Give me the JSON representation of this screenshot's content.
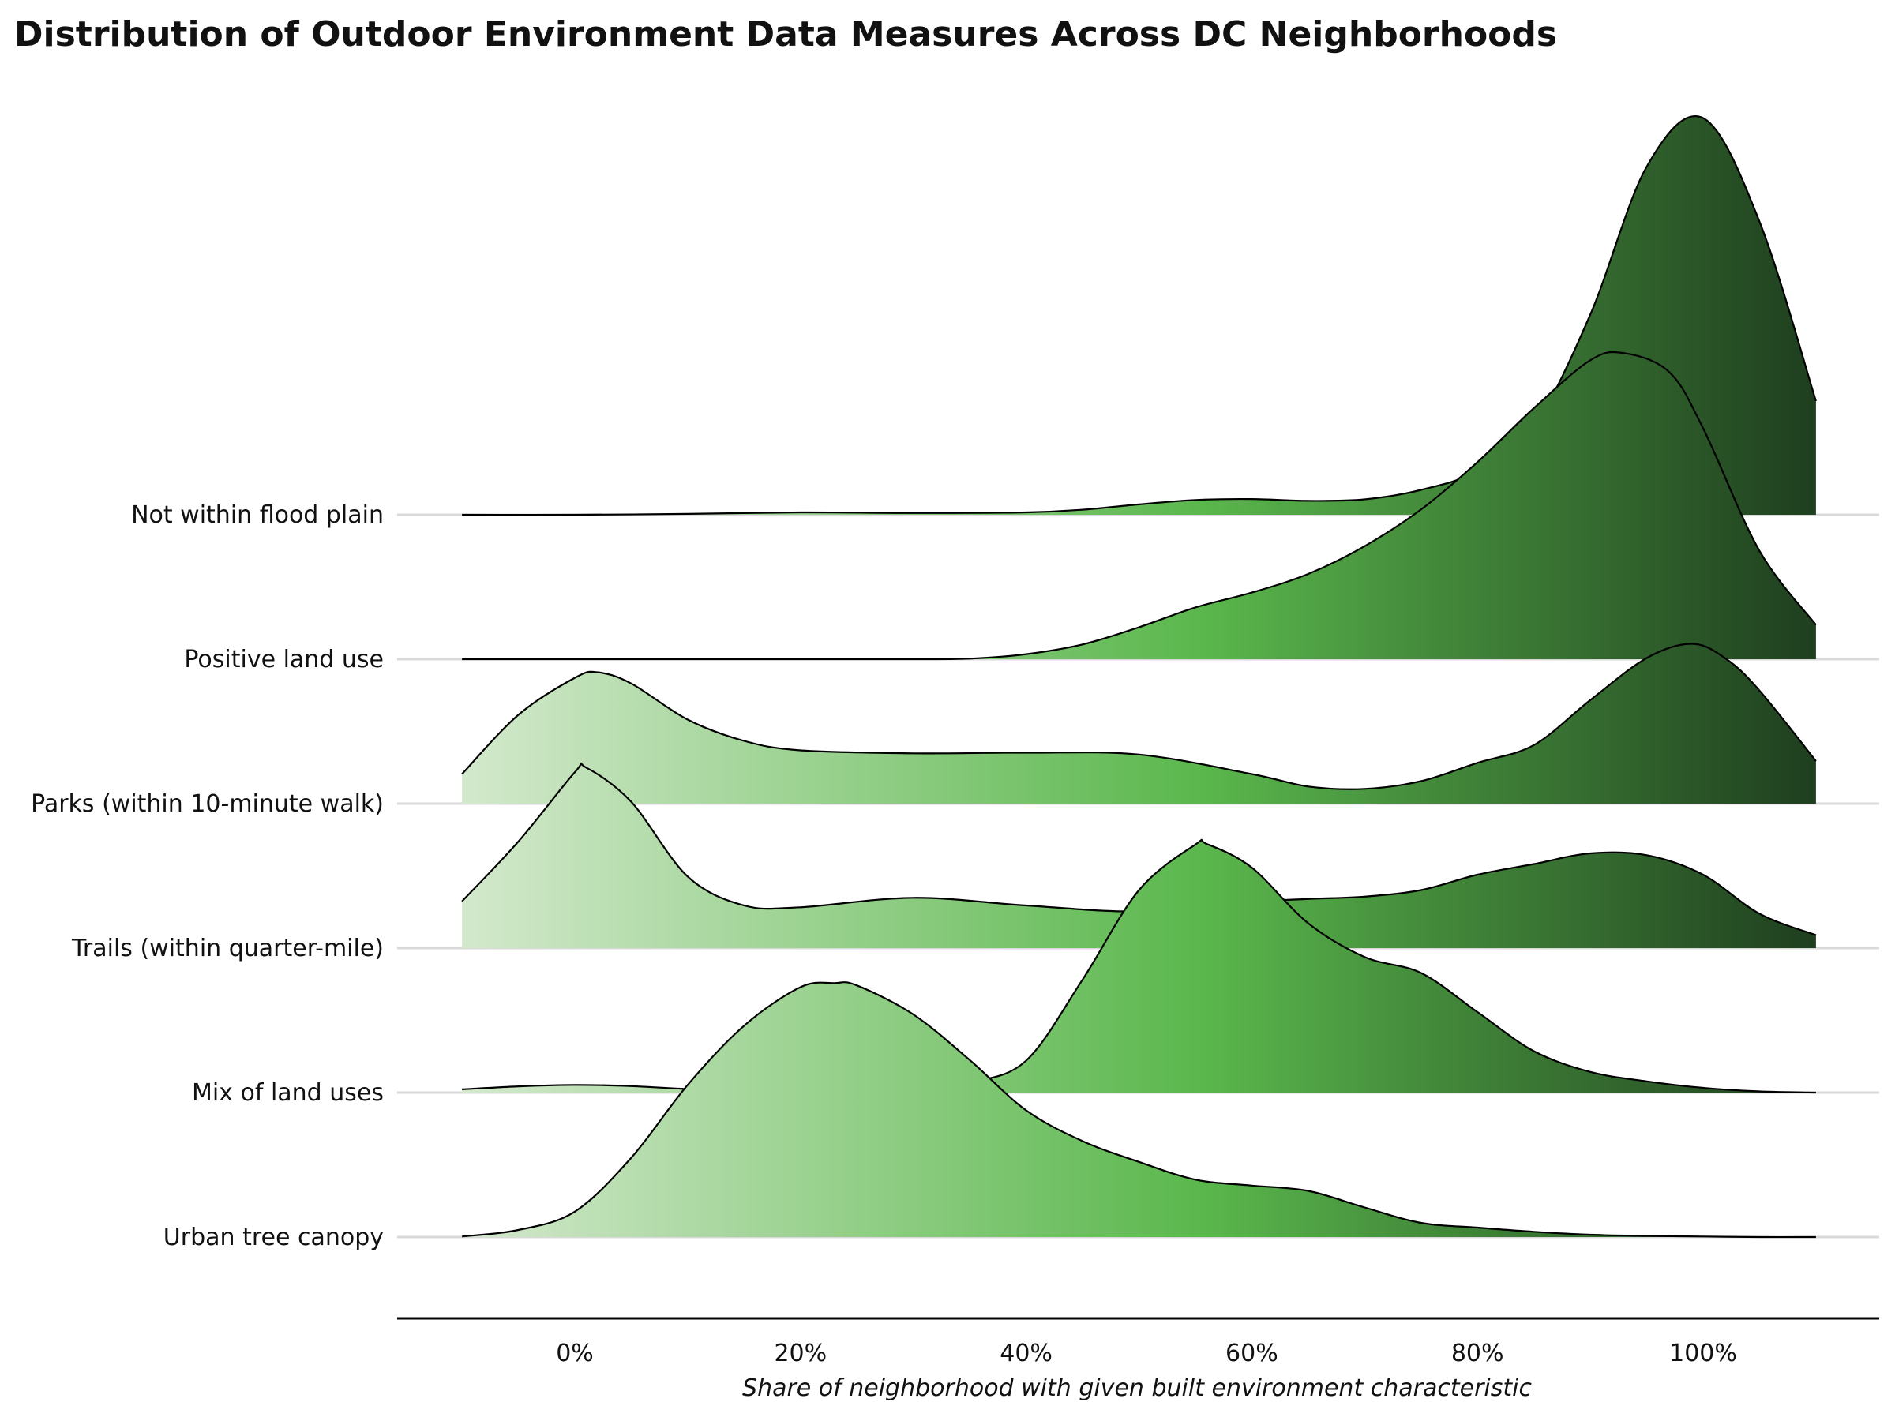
{
  "chart_data": {
    "type": "ridgeline",
    "title": "Distribution of Outdoor Environment Data Measures Across DC Neighborhoods",
    "xlabel": "Share of neighborhood with given built environment characteristic",
    "ylabel": "",
    "xlim": [
      -0.1,
      1.1
    ],
    "x_ticks": [
      0,
      0.2,
      0.4,
      0.6,
      0.8,
      1.0
    ],
    "x_tick_labels": [
      "0%",
      "20%",
      "40%",
      "60%",
      "80%",
      "100%"
    ],
    "grid": "horizontal baselines only",
    "legend": "none",
    "fill": "horizontal gradient by x value, light green to dark green",
    "colors": {
      "light": "#d3e9cc",
      "mid": "#5ab74c",
      "dark": "#1f3f1f",
      "outline": "#000000",
      "baseline": "#d9d9d9",
      "axis": "#000000"
    },
    "categories": [
      "Not within flood plain",
      "Positive land use",
      "Parks (within 10-minute walk)",
      "Trails (within quarter-mile)",
      "Mix of land uses",
      "Urban tree canopy"
    ],
    "series": [
      {
        "name": "Not within flood plain",
        "x": [
          -0.1,
          0.0,
          0.1,
          0.2,
          0.3,
          0.4,
          0.45,
          0.5,
          0.55,
          0.6,
          0.65,
          0.7,
          0.75,
          0.8,
          0.85,
          0.9,
          0.95,
          1.0,
          1.05,
          1.1
        ],
        "density": [
          0.0,
          0.0,
          0.03,
          0.08,
          0.06,
          0.08,
          0.17,
          0.35,
          0.5,
          0.53,
          0.47,
          0.52,
          0.84,
          1.48,
          3.0,
          6.76,
          11.76,
          13.4,
          9.9,
          3.84
        ]
      },
      {
        "name": "Positive land use",
        "x": [
          -0.1,
          0.0,
          0.1,
          0.2,
          0.3,
          0.35,
          0.4,
          0.45,
          0.5,
          0.55,
          0.6,
          0.65,
          0.7,
          0.75,
          0.8,
          0.85,
          0.9,
          0.93,
          0.97,
          1.0,
          1.05,
          1.1
        ],
        "density": [
          0.0,
          0.0,
          0.0,
          0.0,
          0.0,
          0.02,
          0.17,
          0.5,
          1.08,
          1.75,
          2.25,
          2.88,
          3.82,
          5.06,
          6.66,
          8.48,
          10.1,
          10.34,
          9.7,
          7.8,
          3.66,
          1.16
        ]
      },
      {
        "name": "Parks (within 10-minute walk)",
        "x": [
          -0.1,
          -0.05,
          0.0,
          0.02,
          0.05,
          0.1,
          0.15,
          0.2,
          0.3,
          0.4,
          0.5,
          0.6,
          0.65,
          0.7,
          0.75,
          0.8,
          0.85,
          0.9,
          0.95,
          0.99,
          1.02,
          1.05,
          1.1
        ],
        "density": [
          1.0,
          3.0,
          4.25,
          4.44,
          4.06,
          2.84,
          2.12,
          1.8,
          1.7,
          1.72,
          1.66,
          1.0,
          0.58,
          0.5,
          0.76,
          1.38,
          1.98,
          3.5,
          4.92,
          5.4,
          4.9,
          3.82,
          1.44
        ]
      },
      {
        "name": "Trails (within quarter-mile)",
        "x": [
          -0.1,
          -0.05,
          0.0,
          0.01,
          0.05,
          0.1,
          0.15,
          0.2,
          0.3,
          0.4,
          0.5,
          0.6,
          0.65,
          0.7,
          0.75,
          0.8,
          0.85,
          0.9,
          0.95,
          1.0,
          1.05,
          1.1
        ],
        "density": [
          1.58,
          3.6,
          5.94,
          6.1,
          4.94,
          2.42,
          1.44,
          1.38,
          1.7,
          1.44,
          1.24,
          1.56,
          1.66,
          1.74,
          1.96,
          2.48,
          2.84,
          3.2,
          3.14,
          2.48,
          1.16,
          0.44
        ]
      },
      {
        "name": "Mix of land uses",
        "x": [
          -0.1,
          -0.05,
          0.0,
          0.05,
          0.1,
          0.2,
          0.3,
          0.35,
          0.4,
          0.45,
          0.5,
          0.55,
          0.56,
          0.6,
          0.65,
          0.7,
          0.75,
          0.8,
          0.85,
          0.9,
          0.95,
          1.0,
          1.05,
          1.1
        ],
        "density": [
          0.11,
          0.21,
          0.26,
          0.22,
          0.12,
          0.0,
          0.03,
          0.33,
          1.08,
          3.82,
          6.84,
          8.38,
          8.4,
          7.6,
          5.72,
          4.58,
          4.04,
          2.72,
          1.4,
          0.7,
          0.38,
          0.16,
          0.04,
          0.0
        ]
      },
      {
        "name": "Urban tree canopy",
        "x": [
          -0.1,
          -0.05,
          0.0,
          0.05,
          0.1,
          0.15,
          0.2,
          0.23,
          0.25,
          0.3,
          0.35,
          0.4,
          0.45,
          0.5,
          0.55,
          0.6,
          0.65,
          0.7,
          0.75,
          0.8,
          0.85,
          0.9,
          0.95,
          1.0,
          1.05,
          1.1
        ],
        "density": [
          0.02,
          0.24,
          0.86,
          2.68,
          5.14,
          7.14,
          8.44,
          8.58,
          8.5,
          7.52,
          5.98,
          4.28,
          3.24,
          2.54,
          1.94,
          1.74,
          1.56,
          1.0,
          0.48,
          0.32,
          0.18,
          0.08,
          0.04,
          0.02,
          0.0,
          0.0
        ]
      }
    ]
  }
}
